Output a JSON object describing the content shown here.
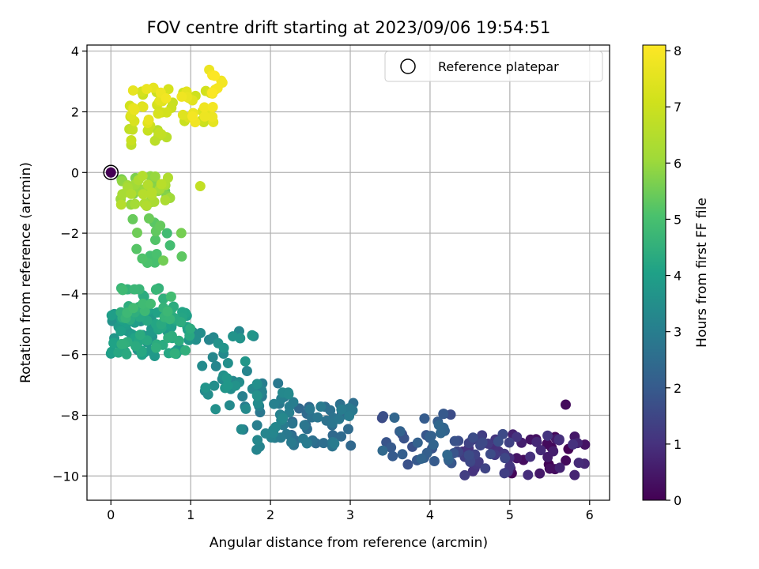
{
  "chart_data": {
    "type": "scatter",
    "title": "FOV centre drift starting at 2023/09/06 19:54:51",
    "xlabel": "Angular distance from reference (arcmin)",
    "ylabel": "Rotation from reference (arcmin)",
    "colorbar_label": "Hours from first FF file",
    "xlim": [
      -0.3,
      6.25
    ],
    "ylim": [
      -10.8,
      4.2
    ],
    "clim": [
      0,
      8.1
    ],
    "x_ticks": [
      "0",
      "1",
      "2",
      "3",
      "4",
      "5",
      "6"
    ],
    "y_ticks": [
      "4",
      "2",
      "0",
      "−2",
      "−4",
      "−6",
      "−8",
      "−10"
    ],
    "colorbar_ticks": [
      "0",
      "1",
      "2",
      "3",
      "4",
      "5",
      "6",
      "7",
      "8"
    ],
    "grid": true,
    "colormap": "viridis",
    "legend": {
      "position": "top-right",
      "entries": [
        "Reference platepar"
      ]
    },
    "reference_point": {
      "x": 0,
      "y": 0
    },
    "segments": [
      {
        "name": "",
        "t_start": 0.0,
        "t_end": 1.1,
        "n": 36,
        "x_range": [
          5.0,
          5.95
        ],
        "y_range": [
          -10.05,
          -8.55
        ]
      },
      {
        "name": "",
        "t_start": 0.9,
        "t_end": 1.7,
        "n": 40,
        "x_range": [
          4.3,
          5.0
        ],
        "y_range": [
          -10.05,
          -8.6
        ]
      },
      {
        "name": "",
        "t_start": 1.6,
        "t_end": 2.4,
        "n": 42,
        "x_range": [
          3.35,
          4.35
        ],
        "y_range": [
          -9.7,
          -7.85
        ]
      },
      {
        "name": "",
        "t_start": 2.3,
        "t_end": 3.0,
        "n": 48,
        "x_range": [
          2.2,
          3.05
        ],
        "y_range": [
          -9.05,
          -7.55
        ]
      },
      {
        "name": "",
        "t_start": 2.8,
        "t_end": 3.4,
        "n": 40,
        "x_range": [
          1.6,
          2.25
        ],
        "y_range": [
          -9.15,
          -6.9
        ]
      },
      {
        "name": "",
        "t_start": 3.2,
        "t_end": 3.75,
        "n": 36,
        "x_range": [
          1.0,
          1.85
        ],
        "y_range": [
          -7.8,
          -5.2
        ]
      },
      {
        "name": "",
        "t_start": 3.6,
        "t_end": 4.5,
        "n": 95,
        "x_range": [
          0.0,
          1.0
        ],
        "y_range": [
          -6.1,
          -4.5
        ]
      },
      {
        "name": "",
        "t_start": 4.3,
        "t_end": 4.9,
        "n": 30,
        "x_range": [
          0.1,
          0.8
        ],
        "y_range": [
          -4.9,
          -3.8
        ]
      },
      {
        "name": "",
        "t_start": 4.85,
        "t_end": 5.6,
        "n": 18,
        "x_range": [
          0.2,
          0.9
        ],
        "y_range": [
          -3.1,
          -1.5
        ]
      },
      {
        "name": "",
        "t_start": 5.5,
        "t_end": 6.6,
        "n": 50,
        "x_range": [
          0.1,
          0.75
        ],
        "y_range": [
          -1.1,
          -0.1
        ]
      },
      {
        "name": "",
        "t_start": 6.5,
        "t_end": 7.0,
        "n": 12,
        "x_range": [
          0.2,
          0.7
        ],
        "y_range": [
          0.9,
          1.55
        ]
      },
      {
        "name": "",
        "t_start": 6.9,
        "t_end": 7.9,
        "n": 55,
        "x_range": [
          0.2,
          1.3
        ],
        "y_range": [
          1.6,
          2.8
        ]
      },
      {
        "name": "",
        "t_start": 7.7,
        "t_end": 8.1,
        "n": 8,
        "x_range": [
          1.2,
          1.45
        ],
        "y_range": [
          2.6,
          3.45
        ]
      }
    ],
    "extra_points": [
      {
        "x": 5.7,
        "y": -7.65,
        "t": 0.2
      },
      {
        "x": 1.12,
        "y": -0.45,
        "t": 6.8
      },
      {
        "x": 0.0,
        "y": 0.0,
        "t": 0.0
      }
    ]
  }
}
